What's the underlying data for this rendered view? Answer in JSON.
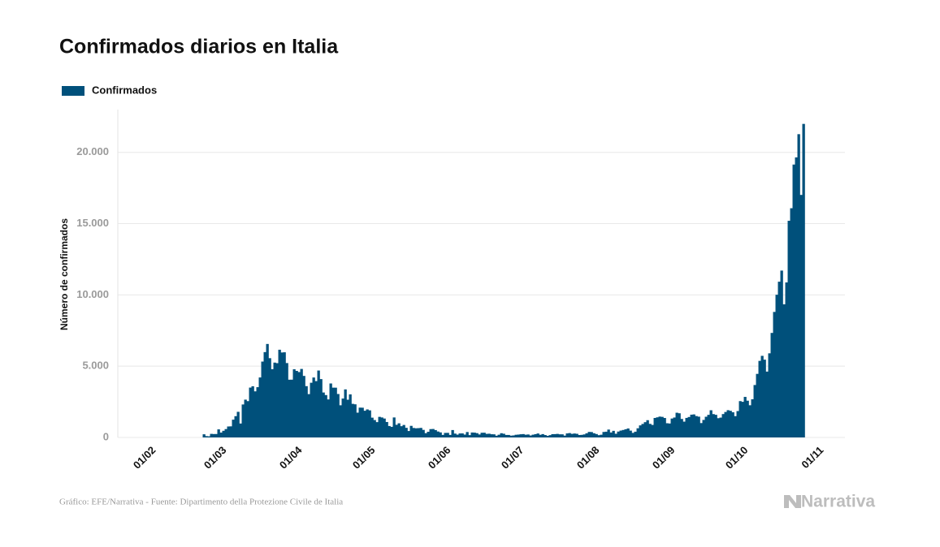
{
  "chart_data": {
    "type": "bar",
    "title": "Confirmados diarios en Italia",
    "y_label": "Número de confirmados",
    "source": "Gráfico: EFE/Narrativa - Fuente: Dipartimento della Protezione Civile de Italia",
    "brand": "Narrativa",
    "grid": true,
    "ylim": [
      0,
      23000
    ],
    "yticks": [
      0,
      {
        "value": 5000,
        "label": "5.000"
      },
      {
        "value": 10000,
        "label": "10.000"
      },
      {
        "value": 15000,
        "label": "15.000"
      },
      {
        "value": 20000,
        "label": "20.000"
      }
    ],
    "xticks": [
      "01/02",
      "01/03",
      "01/04",
      "01/05",
      "01/06",
      "01/07",
      "01/08",
      "01/09",
      "01/10",
      "01/11"
    ],
    "categories": [
      "31/01",
      "01/02",
      "02/02",
      "03/02",
      "04/02",
      "05/02",
      "06/02",
      "07/02",
      "08/02",
      "09/02",
      "10/02",
      "11/02",
      "12/02",
      "13/02",
      "14/02",
      "15/02",
      "16/02",
      "17/02",
      "18/02",
      "19/02",
      "20/02",
      "21/02",
      "22/02",
      "23/02",
      "24/02",
      "25/02",
      "26/02",
      "27/02",
      "28/02",
      "29/02",
      "01/03",
      "02/03",
      "03/03",
      "04/03",
      "05/03",
      "06/03",
      "07/03",
      "08/03",
      "09/03",
      "10/03",
      "11/03",
      "12/03",
      "13/03",
      "14/03",
      "15/03",
      "16/03",
      "17/03",
      "18/03",
      "19/03",
      "20/03",
      "21/03",
      "22/03",
      "23/03",
      "24/03",
      "25/03",
      "26/03",
      "27/03",
      "28/03",
      "29/03",
      "30/03",
      "31/03",
      "01/04",
      "02/04",
      "03/04",
      "04/04",
      "05/04",
      "06/04",
      "07/04",
      "08/04",
      "09/04",
      "10/04",
      "11/04",
      "12/04",
      "13/04",
      "14/04",
      "15/04",
      "16/04",
      "17/04",
      "18/04",
      "19/04",
      "20/04",
      "21/04",
      "22/04",
      "23/04",
      "24/04",
      "25/04",
      "26/04",
      "27/04",
      "28/04",
      "29/04",
      "30/04",
      "01/05",
      "02/05",
      "03/05",
      "04/05",
      "05/05",
      "06/05",
      "07/05",
      "08/05",
      "09/05",
      "10/05",
      "11/05",
      "12/05",
      "13/05",
      "14/05",
      "15/05",
      "16/05",
      "17/05",
      "18/05",
      "19/05",
      "20/05",
      "21/05",
      "22/05",
      "23/05",
      "24/05",
      "25/05",
      "26/05",
      "27/05",
      "28/05",
      "29/05",
      "30/05",
      "31/05",
      "01/06",
      "02/06",
      "03/06",
      "04/06",
      "05/06",
      "06/06",
      "07/06",
      "08/06",
      "09/06",
      "10/06",
      "11/06",
      "12/06",
      "13/06",
      "14/06",
      "15/06",
      "16/06",
      "17/06",
      "18/06",
      "19/06",
      "20/06",
      "21/06",
      "22/06",
      "23/06",
      "24/06",
      "25/06",
      "26/06",
      "27/06",
      "28/06",
      "29/06",
      "30/06",
      "01/07",
      "02/07",
      "03/07",
      "04/07",
      "05/07",
      "06/07",
      "07/07",
      "08/07",
      "09/07",
      "10/07",
      "11/07",
      "12/07",
      "13/07",
      "14/07",
      "15/07",
      "16/07",
      "17/07",
      "18/07",
      "19/07",
      "20/07",
      "21/07",
      "22/07",
      "23/07",
      "24/07",
      "25/07",
      "26/07",
      "27/07",
      "28/07",
      "29/07",
      "30/07",
      "31/07",
      "01/08",
      "02/08",
      "03/08",
      "04/08",
      "05/08",
      "06/08",
      "07/08",
      "08/08",
      "09/08",
      "10/08",
      "11/08",
      "12/08",
      "13/08",
      "14/08",
      "15/08",
      "16/08",
      "17/08",
      "18/08",
      "19/08",
      "20/08",
      "21/08",
      "22/08",
      "23/08",
      "24/08",
      "25/08",
      "26/08",
      "27/08",
      "28/08",
      "29/08",
      "30/08",
      "31/08",
      "01/09",
      "02/09",
      "03/09",
      "04/09",
      "05/09",
      "06/09",
      "07/09",
      "08/09",
      "09/09",
      "10/09",
      "11/09",
      "12/09",
      "13/09",
      "14/09",
      "15/09",
      "16/09",
      "17/09",
      "18/09",
      "19/09",
      "20/09",
      "21/09",
      "22/09",
      "23/09",
      "24/09",
      "25/09",
      "26/09",
      "27/09",
      "28/09",
      "29/09",
      "30/09",
      "01/10",
      "02/10",
      "03/10",
      "04/10",
      "05/10",
      "06/10",
      "07/10",
      "08/10",
      "09/10",
      "10/10",
      "11/10",
      "12/10",
      "13/10",
      "14/10",
      "15/10",
      "16/10",
      "17/10",
      "18/10",
      "19/10",
      "20/10",
      "21/10",
      "22/10",
      "23/10",
      "24/10",
      "25/10",
      "26/10",
      "27/10",
      "28/10",
      "29/10",
      "30/10",
      "31/10",
      "01/11"
    ],
    "series": [
      {
        "name": "Confirmados",
        "color": "#00507b",
        "values": [
          0,
          0,
          0,
          0,
          0,
          0,
          0,
          0,
          0,
          0,
          0,
          0,
          0,
          0,
          0,
          0,
          0,
          0,
          0,
          0,
          0,
          0,
          0,
          0,
          221,
          93,
          78,
          250,
          238,
          240,
          566,
          342,
          466,
          587,
          769,
          778,
          1247,
          1492,
          1797,
          977,
          2313,
          2651,
          2547,
          3497,
          3590,
          3233,
          3526,
          4207,
          5322,
          5986,
          6557,
          5560,
          4789,
          5249,
          5210,
          6153,
          5959,
          5974,
          5217,
          4050,
          4053,
          4782,
          4668,
          4585,
          4805,
          4316,
          3599,
          3039,
          3836,
          4204,
          3951,
          4694,
          4092,
          3153,
          2972,
          2667,
          3786,
          3493,
          3491,
          3047,
          2256,
          2729,
          3370,
          2646,
          3021,
          2357,
          2324,
          1739,
          2091,
          2086,
          1872,
          1965,
          1900,
          1389,
          1221,
          1075,
          1444,
          1401,
          1327,
          1083,
          802,
          744,
          1402,
          888,
          992,
          789,
          875,
          675,
          451,
          813,
          665,
          642,
          652,
          669,
          531,
          300,
          397,
          584,
          593,
          516,
          416,
          355,
          178,
          318,
          321,
          177,
          518,
          270,
          197,
          280,
          283,
          202,
          379,
          163,
          346,
          338,
          301,
          210,
          328,
          331,
          251,
          262,
          224,
          218,
          122,
          190,
          296,
          259,
          175,
          174,
          126,
          142,
          187,
          201,
          223,
          235,
          192,
          208,
          138,
          193,
          229,
          276,
          188,
          234,
          169,
          114,
          162,
          230,
          233,
          249,
          219,
          218,
          129,
          282,
          306,
          252,
          275,
          255,
          170,
          181,
          212,
          289,
          386,
          379,
          295,
          239,
          159,
          190,
          384,
          402,
          552,
          347,
          463,
          259,
          412,
          481,
          523,
          574,
          629,
          479,
          320,
          403,
          642,
          845,
          947,
          1071,
          1210,
          953,
          878,
          1367,
          1411,
          1462,
          1444,
          1365,
          996,
          978,
          1326,
          1397,
          1733,
          1695,
          1297,
          1108,
          1370,
          1434,
          1597,
          1616,
          1501,
          1458,
          1008,
          1229,
          1452,
          1585,
          1907,
          1638,
          1587,
          1350,
          1392,
          1640,
          1786,
          1912,
          1869,
          1766,
          1494,
          1851,
          2548,
          2499,
          2844,
          2578,
          2257,
          2677,
          3678,
          4458,
          5372,
          5724,
          5456,
          4619,
          5901,
          7332,
          8804,
          10010,
          10925,
          11705,
          9338,
          10874,
          15199,
          16079,
          19143,
          19644,
          21273,
          17012,
          21994,
          null,
          null,
          null,
          null,
          null
        ]
      }
    ]
  }
}
